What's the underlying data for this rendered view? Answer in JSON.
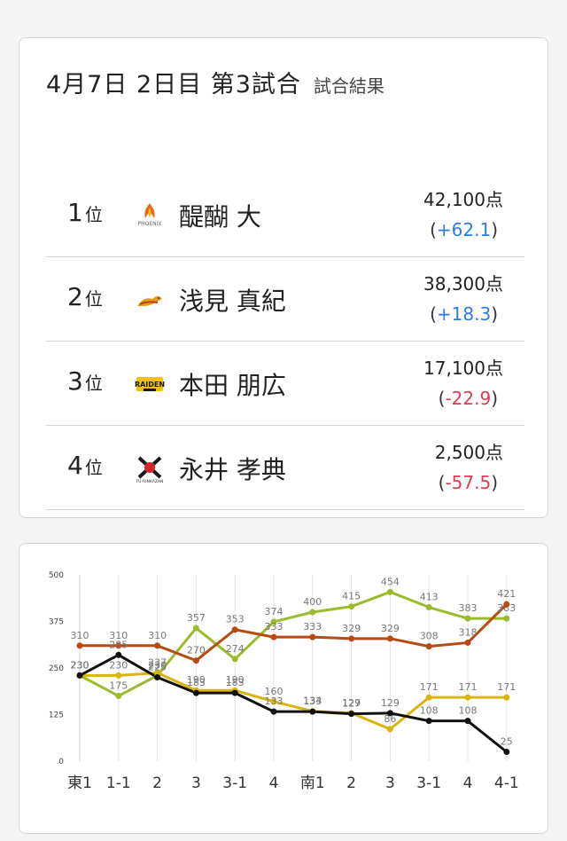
{
  "header": {
    "title": "4月7日  2日目  第3試合",
    "subtitle": "試合結果"
  },
  "results": [
    {
      "rank": "1",
      "rank_suffix": "位",
      "team_icon": "phoenix-logo-icon",
      "player": "醍醐 大",
      "points": "42,100点",
      "score": "+62.1",
      "score_type": "pos"
    },
    {
      "rank": "2",
      "rank_suffix": "位",
      "team_icon": "dragon-logo-icon",
      "player": "浅見 真紀",
      "points": "38,300点",
      "score": "+18.3",
      "score_type": "pos"
    },
    {
      "rank": "3",
      "rank_suffix": "位",
      "team_icon": "raiden-logo-icon",
      "player": "本田 朋広",
      "points": "17,100点",
      "score": "-22.9",
      "score_type": "neg"
    },
    {
      "rank": "4",
      "rank_suffix": "位",
      "team_icon": "rinkaizan-logo-icon",
      "player": "永井 孝典",
      "points": "2,500点",
      "score": "-57.5",
      "score_type": "neg"
    }
  ],
  "colors": {
    "positive": "#2b7be8",
    "negative": "#e03b4f"
  },
  "chart_data": {
    "type": "line",
    "categories": [
      "東1",
      "1-1",
      "2",
      "3",
      "3-1",
      "4",
      "南1",
      "2",
      "3",
      "3-1",
      "4",
      "4-1"
    ],
    "y_ticks": [
      "500",
      "375",
      "250",
      "125",
      "0"
    ],
    "ylim": [
      0,
      500
    ],
    "grid": "vertical",
    "series": [
      {
        "color": "#9bbb2e",
        "values": [
          230,
          175,
          230,
          357,
          274,
          374,
          400,
          415,
          454,
          413,
          383,
          383
        ]
      },
      {
        "color": "#b84a14",
        "values": [
          310,
          310,
          310,
          270,
          353,
          333,
          333,
          329,
          329,
          308,
          318,
          421
        ]
      },
      {
        "color": "#d9b40e",
        "values": [
          230,
          230,
          237,
          190,
          190,
          160,
          134,
          129,
          86,
          171,
          171,
          171
        ]
      },
      {
        "color": "#111111",
        "values": [
          230,
          285,
          225,
          183,
          183,
          133,
          133,
          127,
          129,
          108,
          108,
          25
        ]
      }
    ]
  }
}
